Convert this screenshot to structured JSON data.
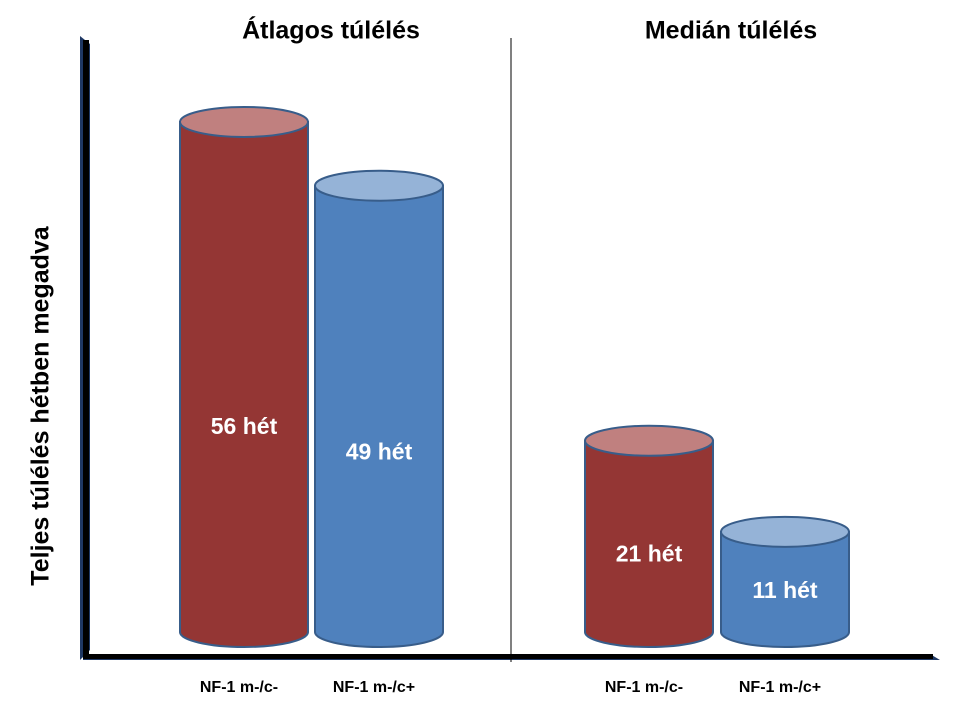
{
  "chart_data": [
    {
      "type": "bar",
      "title": "Átlagos túlélés",
      "ylabel": "Teljes túlélés hétben megadva",
      "categories": [
        "NF-1 m-/c-",
        "NF-1 m-/c+"
      ],
      "values": [
        56,
        49
      ],
      "value_labels": [
        "56 hét",
        "49 hét"
      ],
      "colors": [
        "#943634",
        "#4f81bd"
      ],
      "top_colors": [
        "#c0807f",
        "#95b3d7"
      ],
      "ylim": [
        0,
        65
      ]
    },
    {
      "type": "bar",
      "title": "Medián túlélés",
      "categories": [
        "NF-1 m-/c-",
        "NF-1 m-/c+"
      ],
      "values": [
        21,
        11
      ],
      "value_labels": [
        "21 hét",
        "11 hét"
      ],
      "colors": [
        "#943634",
        "#4f81bd"
      ],
      "top_colors": [
        "#c0807f",
        "#95b3d7"
      ],
      "ylim": [
        0,
        65
      ]
    }
  ]
}
